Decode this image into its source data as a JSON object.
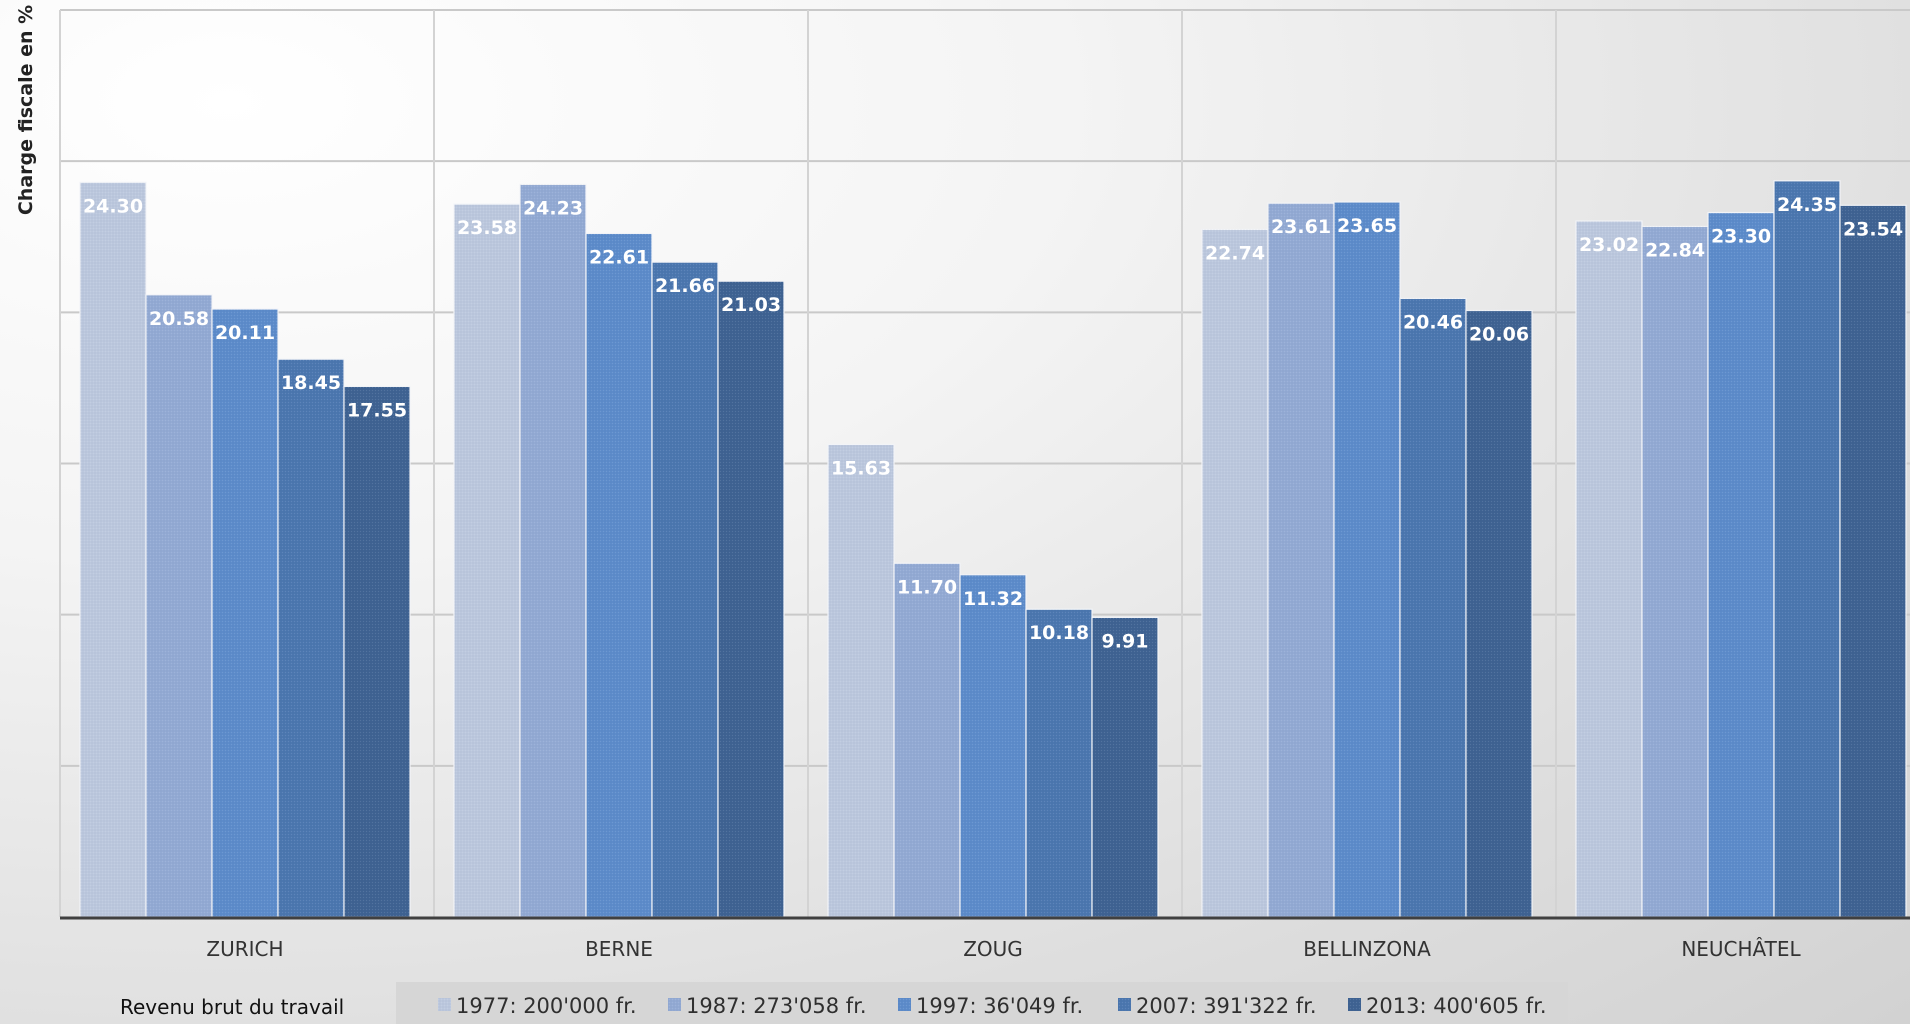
{
  "chart_data": {
    "type": "bar",
    "title": "",
    "ylabel": "Charge fiscale en %",
    "ylim": [
      0,
      30
    ],
    "y_tick_step": 5,
    "grid": true,
    "legend_title": "Revenu brut du travail",
    "legend_position": "bottom",
    "categories": [
      "ZURICH",
      "BERNE",
      "ZOUG",
      "BELLINZONA",
      "NEUCHÂTEL"
    ],
    "series": [
      {
        "name": "1977: 200'000 fr.",
        "color": "#bcc8de",
        "values": [
          24.3,
          23.58,
          15.63,
          22.74,
          23.02
        ]
      },
      {
        "name": "1987: 273'058 fr.",
        "color": "#93aad4",
        "values": [
          20.58,
          24.23,
          11.7,
          23.61,
          22.84
        ]
      },
      {
        "name": "1997: 36'049 fr.",
        "color": "#5d8ccb",
        "values": [
          20.11,
          22.61,
          11.32,
          23.65,
          23.3
        ]
      },
      {
        "name": "2007: 391'322 fr.",
        "color": "#4c77b0",
        "values": [
          18.45,
          21.66,
          10.18,
          20.46,
          24.35
        ]
      },
      {
        "name": "2013: 400'605 fr.",
        "color": "#3f6393",
        "values": [
          17.55,
          21.03,
          9.91,
          20.06,
          23.54
        ]
      }
    ]
  }
}
